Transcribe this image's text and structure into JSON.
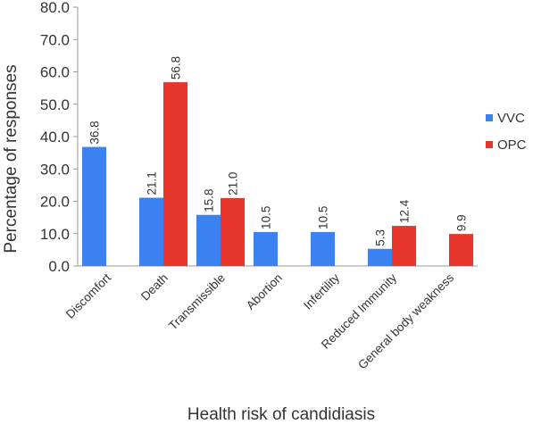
{
  "chart_data": {
    "type": "bar",
    "title": "",
    "xlabel": "Health risk of candidiasis",
    "ylabel": "Percentage of responses",
    "ylim": [
      0,
      80
    ],
    "yticks": [
      "0.0",
      "10.0",
      "20.0",
      "30.0",
      "40.0",
      "50.0",
      "60.0",
      "70.0",
      "80.0"
    ],
    "categories": [
      "Discomfort",
      "Death",
      "Transmissible",
      "Abortion",
      "Infertility",
      "Reduced Immunity",
      "General body weakness"
    ],
    "series": [
      {
        "name": "VVC",
        "color": "#3b82f0",
        "values": [
          36.8,
          21.1,
          15.8,
          10.5,
          10.5,
          5.3,
          null
        ],
        "labels": [
          "36.8",
          "21.1",
          "15.8",
          "10.5",
          "10.5",
          "5.3",
          ""
        ]
      },
      {
        "name": "OPC",
        "color": "#e8362d",
        "values": [
          null,
          56.8,
          21.0,
          null,
          null,
          12.4,
          9.9
        ],
        "labels": [
          "",
          "56.8",
          "21.0",
          "",
          "",
          "12.4",
          "9.9"
        ]
      }
    ],
    "legend_position": "right",
    "grid": false
  }
}
